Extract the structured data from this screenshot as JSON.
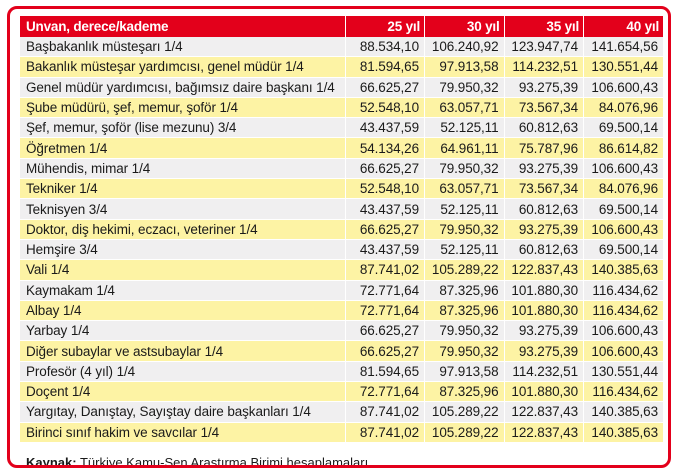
{
  "table": {
    "headers": [
      "Unvan, derece/kademe",
      "25 yıl",
      "30 yıl",
      "35 yıl",
      "40 yıl"
    ],
    "rows": [
      [
        "Başbakanlık müsteşarı 1/4",
        "88.534,10",
        "106.240,92",
        "123.947,74",
        "141.654,56"
      ],
      [
        "Bakanlık müsteşar yardımcısı, genel müdür 1/4",
        "81.594,65",
        "97.913,58",
        "114.232,51",
        "130.551,44"
      ],
      [
        "Genel müdür yardımcısı, bağımsız daire başkanı 1/4",
        "66.625,27",
        "79.950,32",
        "93.275,39",
        "106.600,43"
      ],
      [
        "Şube müdürü, şef, memur, şoför 1/4",
        "52.548,10",
        "63.057,71",
        "73.567,34",
        "84.076,96"
      ],
      [
        "Şef, memur, şoför (lise mezunu) 3/4",
        "43.437,59",
        "52.125,11",
        "60.812,63",
        "69.500,14"
      ],
      [
        "Öğretmen 1/4",
        "54.134,26",
        "64.961,11",
        "75.787,96",
        "86.614,82"
      ],
      [
        "Mühendis, mimar 1/4",
        "66.625,27",
        "79.950,32",
        "93.275,39",
        "106.600,43"
      ],
      [
        "Tekniker 1/4",
        "52.548,10",
        "63.057,71",
        "73.567,34",
        "84.076,96"
      ],
      [
        "Teknisyen 3/4",
        "43.437,59",
        "52.125,11",
        "60.812,63",
        "69.500,14"
      ],
      [
        "Doktor, diş hekimi, eczacı, veteriner 1/4",
        "66.625,27",
        "79.950,32",
        "93.275,39",
        "106.600,43"
      ],
      [
        "Hemşire 3/4",
        "43.437,59",
        "52.125,11",
        "60.812,63",
        "69.500,14"
      ],
      [
        "Vali 1/4",
        "87.741,02",
        "105.289,22",
        "122.837,43",
        "140.385,63"
      ],
      [
        "Kaymakam 1/4",
        "72.771,64",
        "87.325,96",
        "101.880,30",
        "116.434,62"
      ],
      [
        "Albay 1/4",
        "72.771,64",
        "87.325,96",
        "101.880,30",
        "116.434,62"
      ],
      [
        "Yarbay 1/4",
        "66.625,27",
        "79.950,32",
        "93.275,39",
        "106.600,43"
      ],
      [
        "Diğer subaylar ve astsubaylar 1/4",
        "66.625,27",
        "79.950,32",
        "93.275,39",
        "106.600,43"
      ],
      [
        "Profesör (4 yıl) 1/4",
        "81.594,65",
        "97.913,58",
        "114.232,51",
        "130.551,44"
      ],
      [
        "Doçent 1/4",
        "72.771,64",
        "87.325,96",
        "101.880,30",
        "116.434,62"
      ],
      [
        "Yargıtay, Danıştay, Sayıştay daire başkanları 1/4",
        "87.741,02",
        "105.289,22",
        "122.837,43",
        "140.385,63"
      ],
      [
        "Birinci sınıf hakim ve savcılar 1/4",
        "87.741,02",
        "105.289,22",
        "122.837,43",
        "140.385,63"
      ]
    ]
  },
  "source": {
    "label": "Kaynak:",
    "text": " Türkiye Kamu-Sen Araştırma Birimi hesaplamaları."
  },
  "colors": {
    "header_bg": "#e3001b",
    "row_gray": "#f0eff0",
    "row_yellow": "#fdf3a4",
    "border": "#e3001b"
  }
}
